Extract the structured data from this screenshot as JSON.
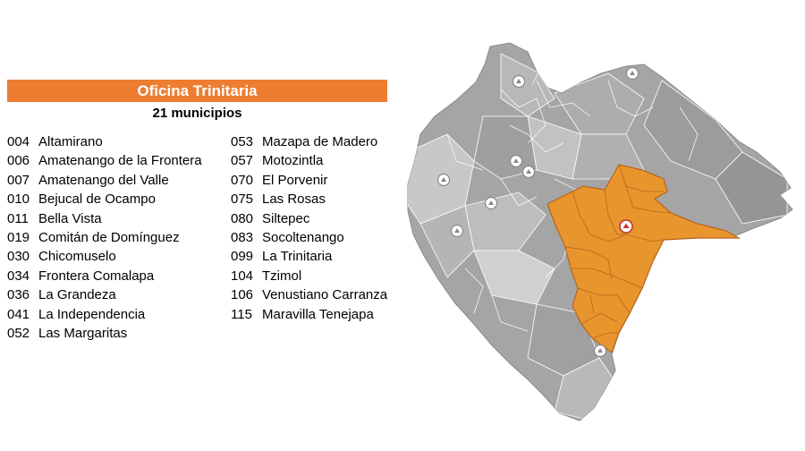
{
  "header": {
    "title": "Oficina Trinitaria",
    "subtitle": "21 municipios"
  },
  "colors": {
    "accent": "#ed7d31",
    "region_fill": "#e8952e",
    "region_stroke": "#b8641a",
    "other_fill": "#a9a9a9",
    "other_stroke": "#ffffff",
    "marker_red": "#c0392b"
  },
  "municipios_left": [
    {
      "code": "004",
      "name": "Altamirano"
    },
    {
      "code": "006",
      "name": "Amatenango de la Frontera"
    },
    {
      "code": "007",
      "name": "Amatenango del Valle"
    },
    {
      "code": "010",
      "name": "Bejucal de Ocampo"
    },
    {
      "code": "011",
      "name": "Bella Vista"
    },
    {
      "code": "019",
      "name": "Comitán de Domínguez"
    },
    {
      "code": "030",
      "name": "Chicomuselo"
    },
    {
      "code": "034",
      "name": "Frontera Comalapa"
    },
    {
      "code": "036",
      "name": "La Grandeza"
    },
    {
      "code": "041",
      "name": "La Independencia"
    },
    {
      "code": "052",
      "name": "Las Margaritas"
    }
  ],
  "municipios_right": [
    {
      "code": "053",
      "name": "Mazapa de Madero"
    },
    {
      "code": "057",
      "name": "Motozintla"
    },
    {
      "code": "070",
      "name": "El Porvenir"
    },
    {
      "code": "075",
      "name": "Las Rosas"
    },
    {
      "code": "080",
      "name": "Siltepec"
    },
    {
      "code": "083",
      "name": "Socoltenango"
    },
    {
      "code": "099",
      "name": "La Trinitaria"
    },
    {
      "code": "104",
      "name": "Tzimol"
    },
    {
      "code": "106",
      "name": "Venustiano Carranza"
    },
    {
      "code": "115",
      "name": "Maravilla Tenejapa"
    }
  ],
  "map": {
    "icon": "office-pin-icon"
  }
}
